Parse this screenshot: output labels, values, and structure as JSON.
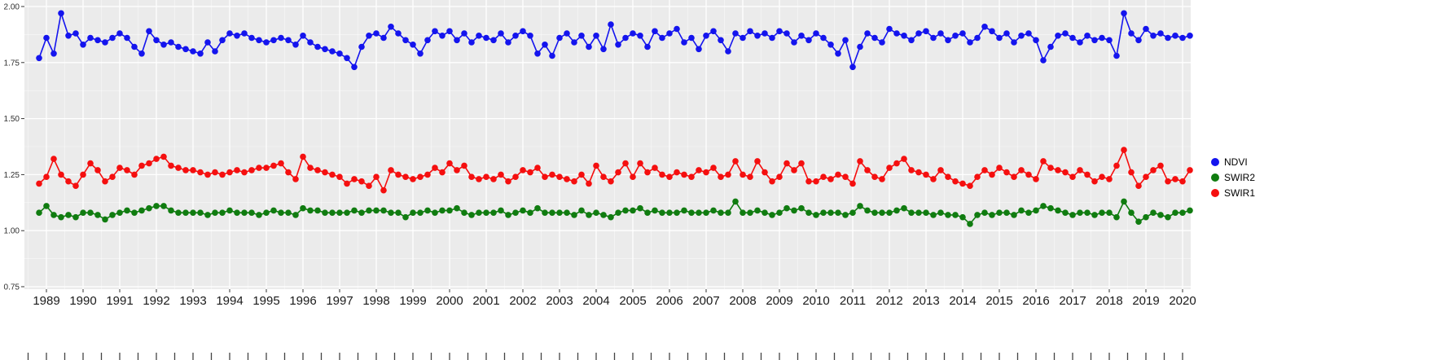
{
  "chart_data": {
    "type": "line",
    "title": "",
    "xlabel": "",
    "ylabel": "",
    "xlim": [
      1988.4,
      2020.3
    ],
    "ylim": [
      0.75,
      2.0
    ],
    "y_ticks": [
      0.75,
      1.0,
      1.25,
      1.5,
      1.75,
      2.0
    ],
    "x_ticks": [
      1989,
      1990,
      1991,
      1992,
      1993,
      1994,
      1995,
      1996,
      1997,
      1998,
      1999,
      2000,
      2001,
      2002,
      2003,
      2004,
      2005,
      2006,
      2007,
      2008,
      2009,
      2010,
      2011,
      2012,
      2013,
      2014,
      2015,
      2016,
      2017,
      2018,
      2019,
      2020
    ],
    "grid": true,
    "panel_bg": "#EBEBEB",
    "grid_color": "#FFFFFF",
    "axis_text_color": "#303030",
    "legend_position": "right",
    "x_start": 1988.8,
    "x_step": 0.2,
    "series": [
      {
        "name": "NDVI",
        "color": "#1414ee",
        "values": [
          1.77,
          1.86,
          1.79,
          1.97,
          1.87,
          1.88,
          1.83,
          1.86,
          1.85,
          1.84,
          1.86,
          1.88,
          1.86,
          1.82,
          1.79,
          1.89,
          1.85,
          1.83,
          1.84,
          1.82,
          1.81,
          1.8,
          1.79,
          1.84,
          1.8,
          1.85,
          1.88,
          1.87,
          1.88,
          1.86,
          1.85,
          1.84,
          1.85,
          1.86,
          1.85,
          1.83,
          1.87,
          1.84,
          1.82,
          1.81,
          1.8,
          1.79,
          1.77,
          1.73,
          1.82,
          1.87,
          1.88,
          1.86,
          1.91,
          1.88,
          1.85,
          1.83,
          1.79,
          1.85,
          1.89,
          1.87,
          1.89,
          1.85,
          1.88,
          1.84,
          1.87,
          1.86,
          1.85,
          1.88,
          1.84,
          1.87,
          1.89,
          1.87,
          1.79,
          1.83,
          1.78,
          1.86,
          1.88,
          1.84,
          1.87,
          1.82,
          1.87,
          1.81,
          1.92,
          1.83,
          1.86,
          1.88,
          1.87,
          1.82,
          1.89,
          1.86,
          1.88,
          1.9,
          1.84,
          1.86,
          1.81,
          1.87,
          1.89,
          1.85,
          1.8,
          1.88,
          1.86,
          1.89,
          1.87,
          1.88,
          1.86,
          1.89,
          1.88,
          1.84,
          1.87,
          1.85,
          1.88,
          1.86,
          1.83,
          1.79,
          1.85,
          1.73,
          1.82,
          1.88,
          1.86,
          1.84,
          1.9,
          1.88,
          1.87,
          1.85,
          1.88,
          1.89,
          1.86,
          1.88,
          1.85,
          1.87,
          1.88,
          1.84,
          1.86,
          1.91,
          1.89,
          1.86,
          1.88,
          1.84,
          1.87,
          1.88,
          1.85,
          1.76,
          1.82,
          1.87,
          1.88,
          1.86,
          1.84,
          1.87,
          1.85,
          1.86,
          1.85,
          1.78,
          1.97,
          1.88,
          1.85,
          1.9,
          1.87,
          1.88,
          1.86,
          1.87,
          1.86,
          1.87
        ]
      },
      {
        "name": "SWIR2",
        "color": "#107c10",
        "values": [
          1.08,
          1.11,
          1.07,
          1.06,
          1.07,
          1.06,
          1.08,
          1.08,
          1.07,
          1.05,
          1.07,
          1.08,
          1.09,
          1.08,
          1.09,
          1.1,
          1.11,
          1.11,
          1.09,
          1.08,
          1.08,
          1.08,
          1.08,
          1.07,
          1.08,
          1.08,
          1.09,
          1.08,
          1.08,
          1.08,
          1.07,
          1.08,
          1.09,
          1.08,
          1.08,
          1.07,
          1.1,
          1.09,
          1.09,
          1.08,
          1.08,
          1.08,
          1.08,
          1.09,
          1.08,
          1.09,
          1.09,
          1.09,
          1.08,
          1.08,
          1.06,
          1.08,
          1.08,
          1.09,
          1.08,
          1.09,
          1.09,
          1.1,
          1.08,
          1.07,
          1.08,
          1.08,
          1.08,
          1.09,
          1.07,
          1.08,
          1.09,
          1.08,
          1.1,
          1.08,
          1.08,
          1.08,
          1.08,
          1.07,
          1.09,
          1.07,
          1.08,
          1.07,
          1.06,
          1.08,
          1.09,
          1.09,
          1.1,
          1.08,
          1.09,
          1.08,
          1.08,
          1.08,
          1.09,
          1.08,
          1.08,
          1.08,
          1.09,
          1.08,
          1.08,
          1.13,
          1.08,
          1.08,
          1.09,
          1.08,
          1.07,
          1.08,
          1.1,
          1.09,
          1.1,
          1.08,
          1.07,
          1.08,
          1.08,
          1.08,
          1.07,
          1.08,
          1.11,
          1.09,
          1.08,
          1.08,
          1.08,
          1.09,
          1.1,
          1.08,
          1.08,
          1.08,
          1.07,
          1.08,
          1.07,
          1.07,
          1.06,
          1.03,
          1.07,
          1.08,
          1.07,
          1.08,
          1.08,
          1.07,
          1.09,
          1.08,
          1.09,
          1.11,
          1.1,
          1.09,
          1.08,
          1.07,
          1.08,
          1.08,
          1.07,
          1.08,
          1.08,
          1.06,
          1.13,
          1.08,
          1.04,
          1.06,
          1.08,
          1.07,
          1.06,
          1.08,
          1.08,
          1.09
        ]
      },
      {
        "name": "SWIR1",
        "color": "#f50f0f",
        "values": [
          1.21,
          1.24,
          1.32,
          1.25,
          1.22,
          1.2,
          1.25,
          1.3,
          1.27,
          1.22,
          1.24,
          1.28,
          1.27,
          1.25,
          1.29,
          1.3,
          1.32,
          1.33,
          1.29,
          1.28,
          1.27,
          1.27,
          1.26,
          1.25,
          1.26,
          1.25,
          1.26,
          1.27,
          1.26,
          1.27,
          1.28,
          1.28,
          1.29,
          1.3,
          1.26,
          1.23,
          1.33,
          1.28,
          1.27,
          1.26,
          1.25,
          1.24,
          1.21,
          1.23,
          1.22,
          1.2,
          1.24,
          1.18,
          1.27,
          1.25,
          1.24,
          1.23,
          1.24,
          1.25,
          1.28,
          1.26,
          1.3,
          1.27,
          1.29,
          1.24,
          1.23,
          1.24,
          1.23,
          1.25,
          1.22,
          1.24,
          1.27,
          1.26,
          1.28,
          1.24,
          1.25,
          1.24,
          1.23,
          1.22,
          1.25,
          1.21,
          1.29,
          1.24,
          1.22,
          1.26,
          1.3,
          1.24,
          1.3,
          1.26,
          1.28,
          1.25,
          1.24,
          1.26,
          1.25,
          1.24,
          1.27,
          1.26,
          1.28,
          1.24,
          1.25,
          1.31,
          1.25,
          1.24,
          1.31,
          1.26,
          1.22,
          1.24,
          1.3,
          1.27,
          1.3,
          1.22,
          1.22,
          1.24,
          1.23,
          1.25,
          1.24,
          1.21,
          1.31,
          1.27,
          1.24,
          1.23,
          1.28,
          1.3,
          1.32,
          1.27,
          1.26,
          1.25,
          1.23,
          1.27,
          1.24,
          1.22,
          1.21,
          1.2,
          1.24,
          1.27,
          1.25,
          1.28,
          1.26,
          1.24,
          1.27,
          1.25,
          1.23,
          1.31,
          1.28,
          1.27,
          1.26,
          1.24,
          1.27,
          1.25,
          1.22,
          1.24,
          1.23,
          1.29,
          1.36,
          1.26,
          1.2,
          1.24,
          1.27,
          1.29,
          1.22,
          1.23,
          1.22,
          1.27
        ]
      }
    ]
  }
}
